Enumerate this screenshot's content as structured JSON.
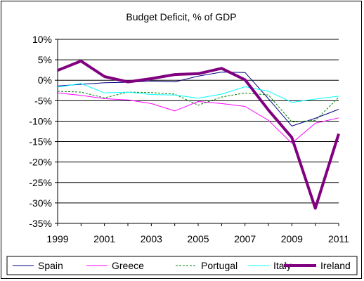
{
  "chart_data": {
    "type": "line",
    "title": "Budget Deficit, % of GDP",
    "xlabel": "",
    "ylabel": "",
    "x": [
      1999,
      2000,
      2001,
      2002,
      2003,
      2004,
      2005,
      2006,
      2007,
      2008,
      2009,
      2010,
      2011
    ],
    "x_tick_labels": [
      "1999",
      "2001",
      "2003",
      "2005",
      "2007",
      "2009",
      "2011"
    ],
    "x_tick_values": [
      1999,
      2001,
      2003,
      2005,
      2007,
      2009,
      2011
    ],
    "ylim": [
      -35,
      10
    ],
    "y_ticks": [
      10,
      5,
      0,
      -5,
      -10,
      -15,
      -20,
      -25,
      -30,
      -35
    ],
    "y_tick_labels": [
      "10%",
      "5%",
      "0%",
      "-5%",
      "-10%",
      "-15%",
      "-20%",
      "-25%",
      "-30%",
      "-35%"
    ],
    "grid": "horizontal",
    "legend_position": "bottom",
    "series": [
      {
        "name": "Spain",
        "color": "#000080",
        "style": "solid",
        "width": 1,
        "values": [
          -1.4,
          -1.0,
          -0.6,
          -0.5,
          -0.2,
          -0.4,
          1.0,
          2.0,
          1.9,
          -4.5,
          -11.2,
          -9.3,
          -7.1
        ]
      },
      {
        "name": "Greece",
        "color": "#ff00ff",
        "style": "solid",
        "width": 1,
        "values": [
          -3.1,
          -3.7,
          -4.5,
          -4.8,
          -5.7,
          -7.5,
          -5.2,
          -5.7,
          -6.4,
          -9.8,
          -15.4,
          -10.5,
          -9.2
        ]
      },
      {
        "name": "Portugal",
        "color": "#008000",
        "style": "dashed",
        "width": 1,
        "values": [
          -2.7,
          -2.9,
          -4.3,
          -2.9,
          -3.0,
          -3.4,
          -6.1,
          -4.1,
          -3.1,
          -3.6,
          -10.2,
          -9.8,
          -4.2
        ]
      },
      {
        "name": "Italy",
        "color": "#00ffff",
        "style": "solid",
        "width": 1,
        "values": [
          -1.7,
          -0.8,
          -3.1,
          -2.9,
          -3.5,
          -3.6,
          -4.4,
          -3.4,
          -1.6,
          -2.7,
          -5.4,
          -4.6,
          -3.9
        ]
      },
      {
        "name": "Ireland",
        "color": "#800080",
        "style": "solid",
        "width": 4,
        "values": [
          2.4,
          4.7,
          0.9,
          -0.4,
          0.4,
          1.4,
          1.6,
          2.9,
          0.1,
          -7.3,
          -14.0,
          -31.3,
          -13.1
        ]
      }
    ]
  }
}
